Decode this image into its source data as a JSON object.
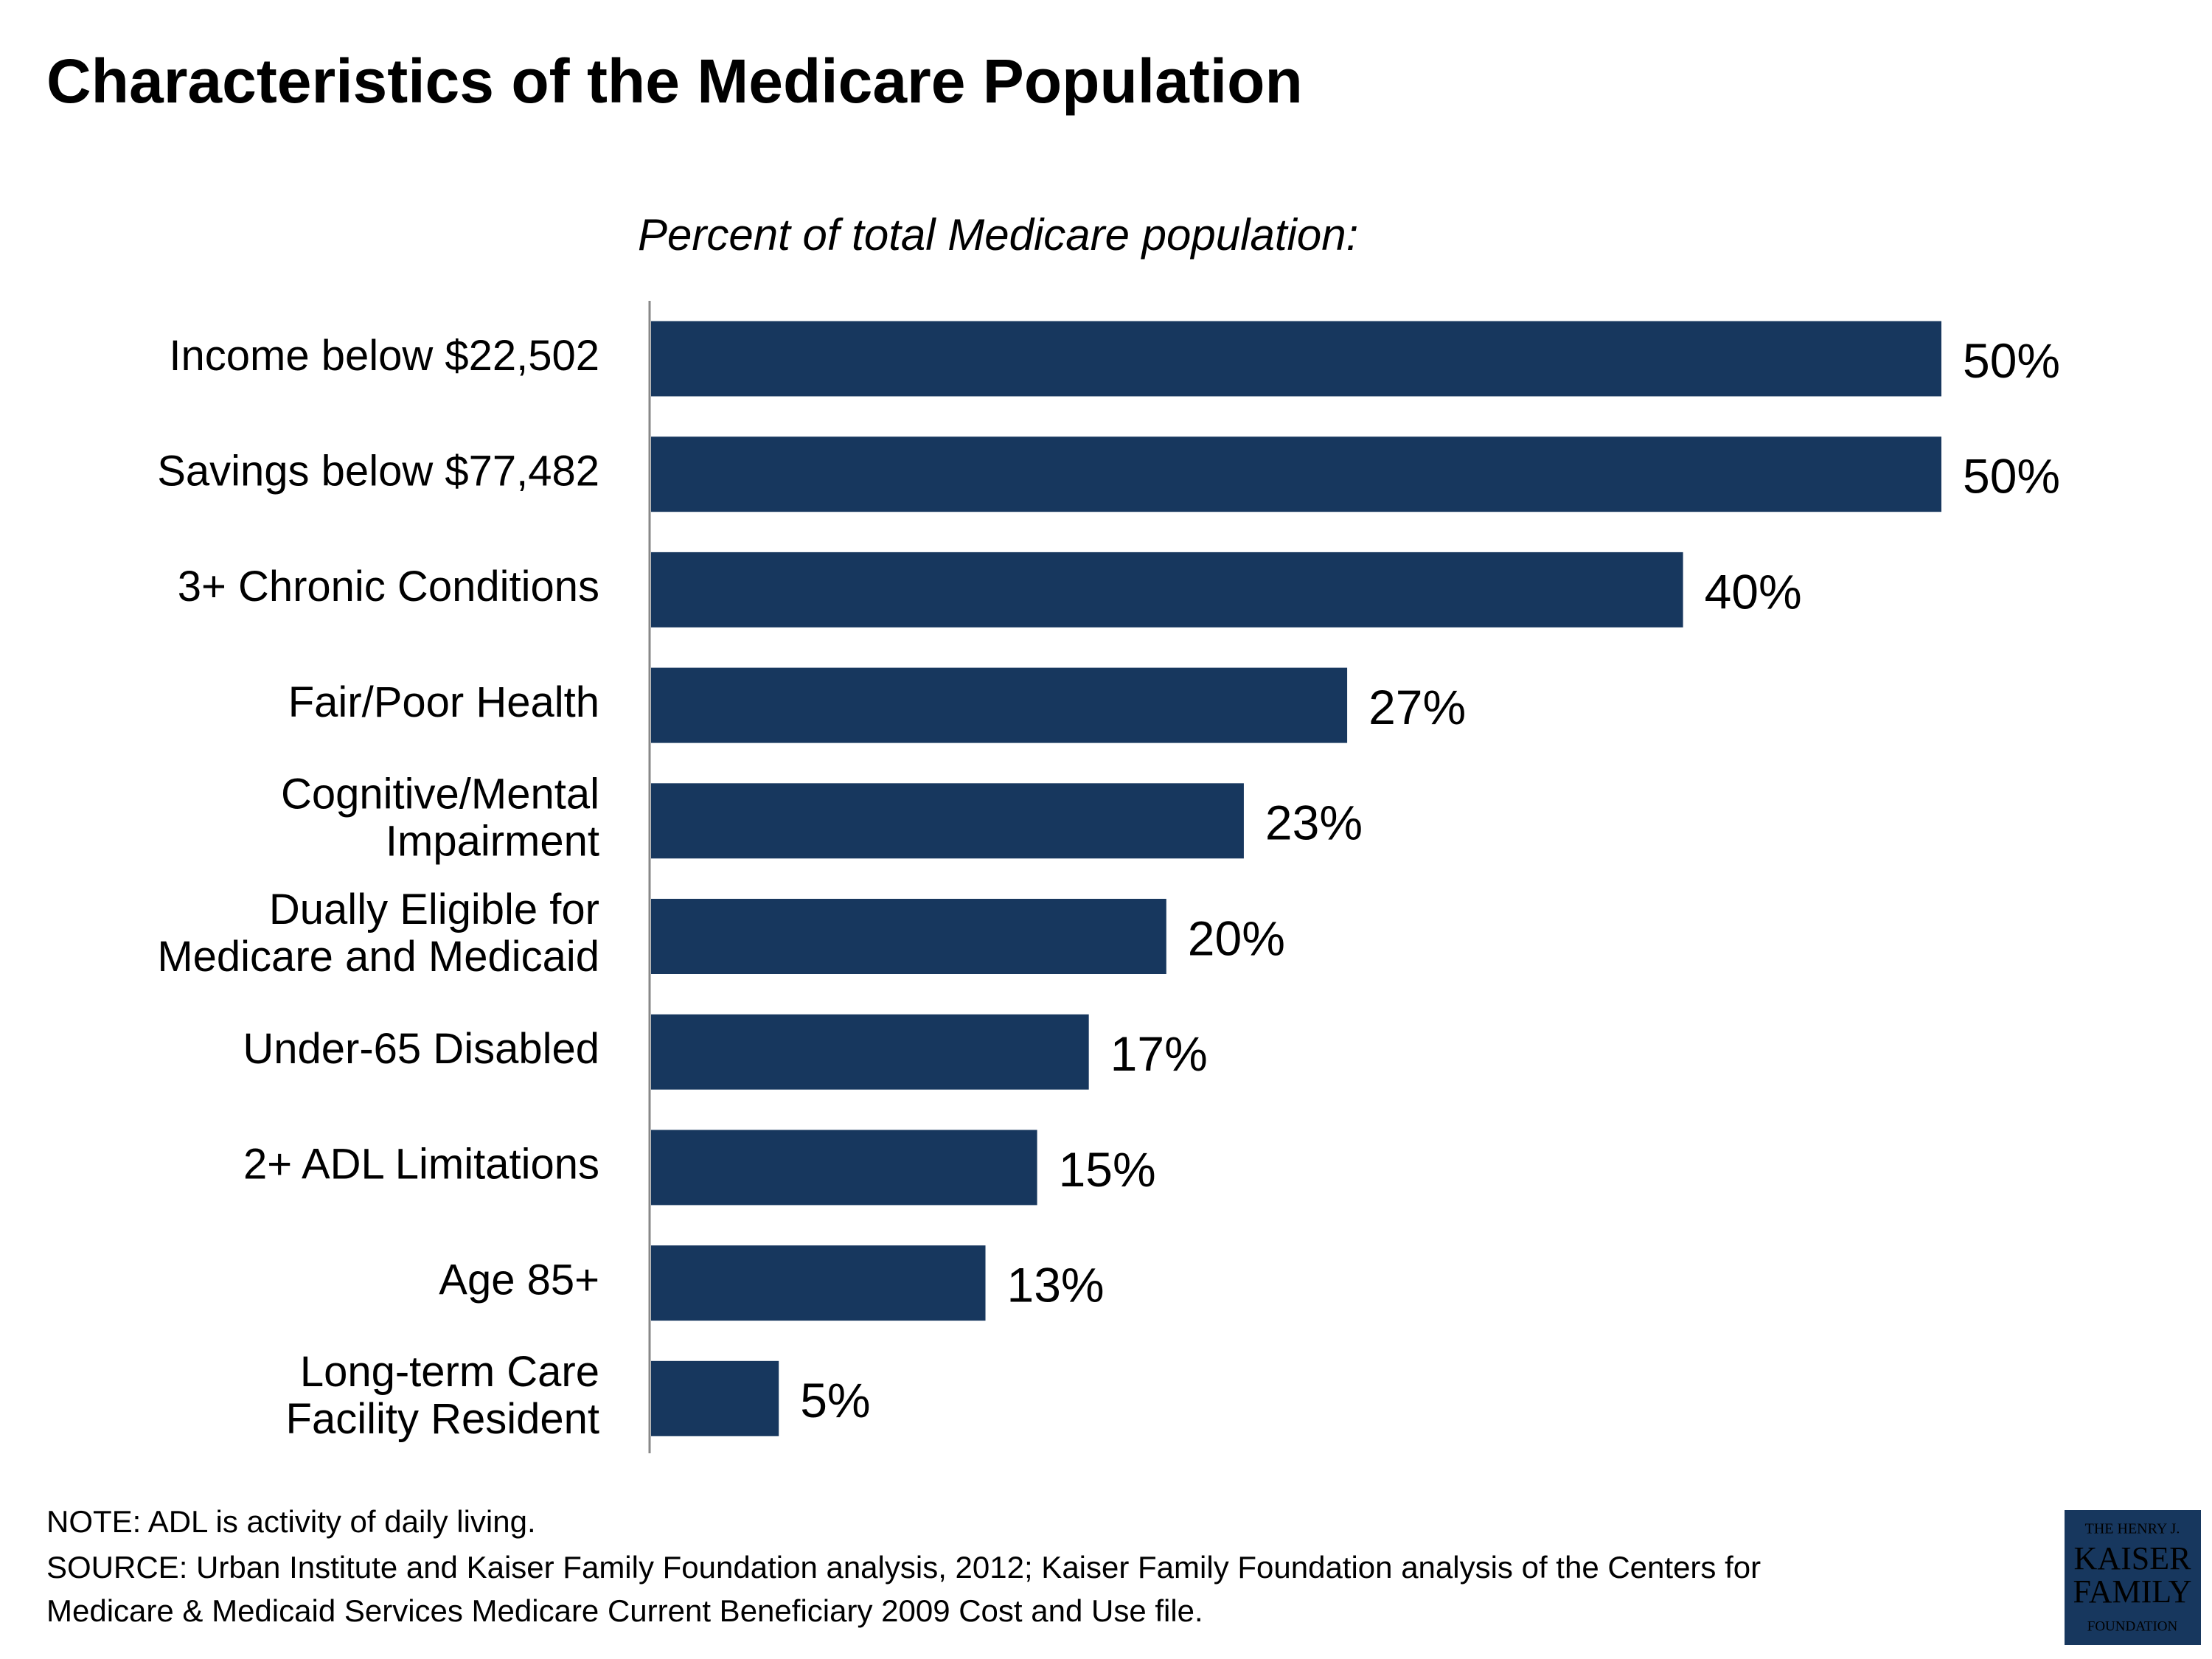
{
  "chart_data": {
    "type": "bar",
    "orientation": "horizontal",
    "title": "Characteristics of the Medicare Population",
    "subtitle": "Percent of total Medicare population:",
    "categories": [
      "Income below $22,502",
      "Savings below $77,482",
      "3+ Chronic Conditions",
      "Fair/Poor Health",
      "Cognitive/Mental\nImpairment",
      "Dually Eligible for\nMedicare and Medicaid",
      "Under-65 Disabled",
      "2+ ADL Limitations",
      "Age 85+",
      "Long-term Care\nFacility Resident"
    ],
    "values": [
      50,
      50,
      40,
      27,
      23,
      20,
      17,
      15,
      13,
      5
    ],
    "value_labels": [
      "50%",
      "50%",
      "40%",
      "27%",
      "23%",
      "20%",
      "17%",
      "15%",
      "13%",
      "5%"
    ],
    "color": "#17375e",
    "notes": [
      "NOTE: ADL is activity of daily living.",
      "SOURCE: Urban Institute and Kaiser Family Foundation analysis, 2012; Kaiser Family Foundation analysis of the Centers for",
      "Medicare & Medicaid Services Medicare Current Beneficiary 2009 Cost and Use file."
    ],
    "logo": [
      "THE HENRY J.",
      "KAISER",
      "FAMILY",
      "FOUNDATION"
    ]
  }
}
